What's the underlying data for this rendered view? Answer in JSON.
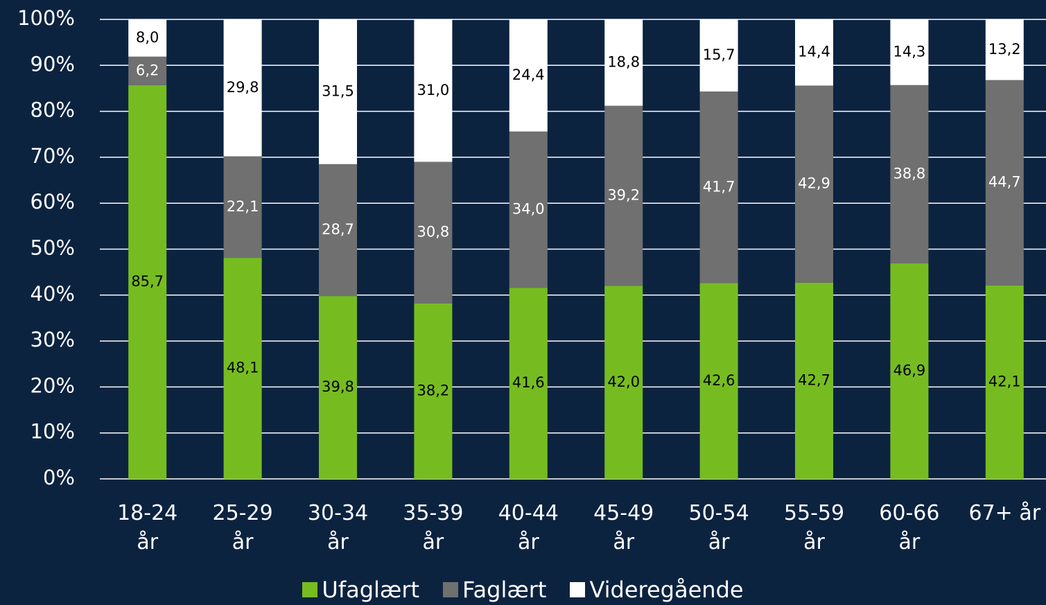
{
  "chart_data": {
    "type": "stacked_bar",
    "categories": [
      "18-24 år",
      "25-29 år",
      "30-34 år",
      "35-39 år",
      "40-44 år",
      "45-49 år",
      "50-54 år",
      "55-59 år",
      "60-66 år",
      "67+ år"
    ],
    "series": [
      {
        "name": "Ufaglært",
        "color": "#76bc21",
        "label_color": "#000000",
        "values": [
          85.7,
          48.1,
          39.8,
          38.2,
          41.6,
          42.0,
          42.6,
          42.7,
          46.9,
          42.1
        ],
        "value_labels": [
          "85,7",
          "48,1",
          "39,8",
          "38,2",
          "41,6",
          "42,0",
          "42,6",
          "42,7",
          "46,9",
          "42,1"
        ]
      },
      {
        "name": "Faglært",
        "color": "#707070",
        "label_color": "#ffffff",
        "values": [
          6.2,
          22.1,
          28.7,
          30.8,
          34.0,
          39.2,
          41.7,
          42.9,
          38.8,
          44.7
        ],
        "value_labels": [
          "6,2",
          "22,1",
          "28,7",
          "30,8",
          "34,0",
          "39,2",
          "41,7",
          "42,9",
          "38,8",
          "44,7"
        ]
      },
      {
        "name": "Videregående",
        "color": "#ffffff",
        "label_color": "#000000",
        "values": [
          8.0,
          29.8,
          31.5,
          31.0,
          24.4,
          18.8,
          15.7,
          14.4,
          14.3,
          13.2
        ],
        "value_labels": [
          "8,0",
          "29,8",
          "31,5",
          "31,0",
          "24,4",
          "18,8",
          "15,7",
          "14,4",
          "14,3",
          "13,2"
        ]
      }
    ],
    "ylim": [
      0,
      100
    ],
    "yticks": [
      {
        "value": 0,
        "label": "0%"
      },
      {
        "value": 10,
        "label": "10%"
      },
      {
        "value": 20,
        "label": "20%"
      },
      {
        "value": 30,
        "label": "30%"
      },
      {
        "value": 40,
        "label": "40%"
      },
      {
        "value": 50,
        "label": "50%"
      },
      {
        "value": 60,
        "label": "60%"
      },
      {
        "value": 70,
        "label": "70%"
      },
      {
        "value": 80,
        "label": "80%"
      },
      {
        "value": 90,
        "label": "90%"
      },
      {
        "value": 100,
        "label": "100%"
      }
    ],
    "grid": true,
    "legend": "bottom"
  }
}
